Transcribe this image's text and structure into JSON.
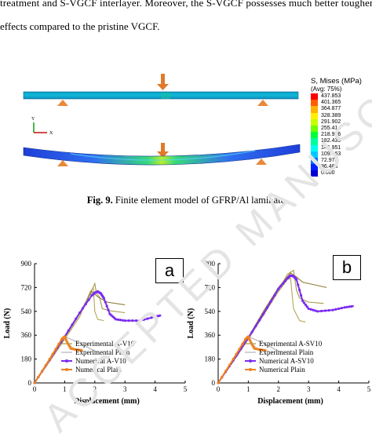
{
  "paragraph": {
    "line1": "treatment and S-VGCF interlayer. Moreover, the S-VGCF possesses much better toughening",
    "line2": "effects compared to the pristine VGCF."
  },
  "fe_model": {
    "legend_title": "S, Mises (MPa)",
    "legend_subtitle": "(Avg: 75%)",
    "legend_values": [
      "437.853",
      "401.365",
      "364.877",
      "328.389",
      "291.902",
      "255.414",
      "218.926",
      "182.439",
      "145.951",
      "109.463",
      "72.975",
      "36.488",
      "0.000"
    ],
    "legend_colors": [
      "#ff0000",
      "#ff5e00",
      "#ffb200",
      "#fff000",
      "#c8ff00",
      "#6eff00",
      "#00ff3a",
      "#00ff9a",
      "#00fff0",
      "#00c8ff",
      "#0070ff",
      "#0020ff",
      "#0000d0"
    ],
    "triad_y": "Y",
    "triad_x": "X"
  },
  "caption": {
    "label": "Fig. 9.",
    "text": " Finite element model of GFRP/Al laminate"
  },
  "watermark": {
    "text": "ACCEPTED MANUSCRIPT"
  },
  "chart_data": [
    {
      "panel": "a",
      "type": "line",
      "xlabel": "Displacement (mm)",
      "ylabel": "Load (N)",
      "xlim": [
        0,
        5
      ],
      "ylim": [
        0,
        900
      ],
      "xticks": [
        0,
        1,
        2,
        3,
        4,
        5
      ],
      "yticks": [
        0,
        180,
        360,
        540,
        720,
        900
      ],
      "legend": [
        "Experimental A-V10",
        "Experimental Plain",
        "Numerical A-V10",
        "Numerical Plain"
      ],
      "legend_position": "bottom-right",
      "series": [
        {
          "name": "Experimental A-V10",
          "color": "#a69845",
          "points": [
            [
              0,
              0
            ],
            [
              0.5,
              170
            ],
            [
              1.0,
              340
            ],
            [
              1.5,
              520
            ],
            [
              1.9,
              700
            ],
            [
              2.0,
              750
            ],
            [
              2.05,
              680
            ],
            [
              2.15,
              650
            ],
            [
              2.25,
              560
            ],
            [
              2.5,
              545
            ],
            [
              3.0,
              530
            ]
          ]
        },
        {
          "name": "Experimental A-V10",
          "color": "#b5a65a",
          "points": [
            [
              0,
              0
            ],
            [
              0.5,
              160
            ],
            [
              1.0,
              330
            ],
            [
              1.5,
              500
            ],
            [
              1.85,
              690
            ],
            [
              1.95,
              720
            ],
            [
              2.0,
              540
            ],
            [
              2.1,
              480
            ],
            [
              2.3,
              470
            ]
          ]
        },
        {
          "name": "Experimental A-V10",
          "color": "#8c7d35",
          "points": [
            [
              0,
              0
            ],
            [
              0.5,
              175
            ],
            [
              1.0,
              345
            ],
            [
              1.5,
              530
            ],
            [
              1.9,
              690
            ],
            [
              2.1,
              650
            ],
            [
              2.4,
              610
            ],
            [
              3.0,
              590
            ]
          ]
        },
        {
          "name": "Experimental Plain",
          "color": "#b0b0b0",
          "points": [
            [
              0,
              0
            ],
            [
              0.5,
              180
            ],
            [
              1.0,
              350
            ],
            [
              1.2,
              330
            ],
            [
              1.5,
              300
            ],
            [
              2.0,
              240
            ]
          ]
        },
        {
          "name": "Experimental Plain",
          "color": "#c8c8c8",
          "points": [
            [
              0,
              0
            ],
            [
              0.5,
              165
            ],
            [
              0.95,
              340
            ],
            [
              1.1,
              300
            ],
            [
              1.3,
              260
            ],
            [
              1.6,
              250
            ]
          ]
        },
        {
          "name": "Numerical A-V10",
          "color": "#7b2bf0",
          "marker": true,
          "points": [
            [
              0,
              0
            ],
            [
              0.5,
              175
            ],
            [
              1.0,
              350
            ],
            [
              1.5,
              530
            ],
            [
              1.9,
              660
            ],
            [
              2.0,
              680
            ],
            [
              2.1,
              690
            ],
            [
              2.2,
              675
            ],
            [
              2.3,
              640
            ],
            [
              2.5,
              520
            ],
            [
              2.7,
              480
            ],
            [
              3.0,
              470
            ],
            [
              3.5,
              470
            ],
            [
              4.0,
              500
            ],
            [
              4.2,
              510
            ]
          ]
        },
        {
          "name": "Numerical Plain",
          "color": "#f0821e",
          "marker": true,
          "points": [
            [
              0,
              0
            ],
            [
              0.5,
              180
            ],
            [
              0.9,
              330
            ],
            [
              1.0,
              350
            ],
            [
              1.1,
              300
            ],
            [
              1.2,
              260
            ],
            [
              1.4,
              250
            ],
            [
              1.6,
              245
            ]
          ]
        }
      ]
    },
    {
      "panel": "b",
      "type": "line",
      "xlabel": "Displacement (mm)",
      "ylabel": "Load (N)",
      "xlim": [
        0,
        5
      ],
      "ylim": [
        0,
        900
      ],
      "xticks": [
        0,
        1,
        2,
        3,
        4,
        5
      ],
      "yticks": [
        0,
        180,
        360,
        540,
        720,
        900
      ],
      "legend": [
        "Experimental A-SV10",
        "Experimental Plain",
        "Numerical A-SV10",
        "Numerical Plain"
      ],
      "legend_position": "bottom-right",
      "series": [
        {
          "name": "Experimental A-SV10",
          "color": "#a69845",
          "points": [
            [
              0,
              0
            ],
            [
              0.5,
              170
            ],
            [
              1.0,
              340
            ],
            [
              1.5,
              530
            ],
            [
              2.0,
              700
            ],
            [
              2.3,
              820
            ],
            [
              2.5,
              850
            ],
            [
              2.6,
              700
            ],
            [
              2.7,
              640
            ],
            [
              3.0,
              610
            ],
            [
              3.5,
              600
            ]
          ]
        },
        {
          "name": "Experimental A-SV10",
          "color": "#b5a65a",
          "points": [
            [
              0,
              0
            ],
            [
              0.5,
              160
            ],
            [
              1.0,
              330
            ],
            [
              1.5,
              510
            ],
            [
              2.0,
              690
            ],
            [
              2.3,
              780
            ],
            [
              2.4,
              790
            ],
            [
              2.5,
              560
            ],
            [
              2.7,
              470
            ],
            [
              2.9,
              460
            ]
          ]
        },
        {
          "name": "Experimental A-SV10",
          "color": "#8c7d35",
          "points": [
            [
              0,
              0
            ],
            [
              0.5,
              175
            ],
            [
              1.0,
              345
            ],
            [
              1.5,
              540
            ],
            [
              2.0,
              720
            ],
            [
              2.4,
              830
            ],
            [
              2.6,
              800
            ],
            [
              2.8,
              760
            ],
            [
              3.2,
              740
            ],
            [
              3.6,
              720
            ]
          ]
        },
        {
          "name": "Experimental Plain",
          "color": "#b0b0b0",
          "points": [
            [
              0,
              0
            ],
            [
              0.5,
              180
            ],
            [
              1.0,
              350
            ],
            [
              1.2,
              330
            ],
            [
              1.5,
              300
            ],
            [
              2.0,
              240
            ]
          ]
        },
        {
          "name": "Experimental Plain",
          "color": "#c8c8c8",
          "points": [
            [
              0,
              0
            ],
            [
              0.5,
              165
            ],
            [
              0.95,
              340
            ],
            [
              1.1,
              300
            ],
            [
              1.3,
              260
            ],
            [
              1.6,
              250
            ]
          ]
        },
        {
          "name": "Numerical A-SV10",
          "color": "#7b2bf0",
          "marker": true,
          "points": [
            [
              0,
              0
            ],
            [
              0.5,
              170
            ],
            [
              1.0,
              340
            ],
            [
              1.5,
              520
            ],
            [
              2.0,
              710
            ],
            [
              2.3,
              790
            ],
            [
              2.4,
              810
            ],
            [
              2.5,
              805
            ],
            [
              2.6,
              780
            ],
            [
              2.8,
              620
            ],
            [
              3.0,
              560
            ],
            [
              3.3,
              540
            ],
            [
              3.8,
              550
            ],
            [
              4.2,
              570
            ],
            [
              4.5,
              580
            ]
          ]
        },
        {
          "name": "Numerical Plain",
          "color": "#f0821e",
          "marker": true,
          "points": [
            [
              0,
              0
            ],
            [
              0.5,
              180
            ],
            [
              0.9,
              330
            ],
            [
              1.0,
              350
            ],
            [
              1.1,
              300
            ],
            [
              1.2,
              260
            ],
            [
              1.4,
              250
            ],
            [
              1.6,
              245
            ]
          ]
        }
      ]
    }
  ]
}
